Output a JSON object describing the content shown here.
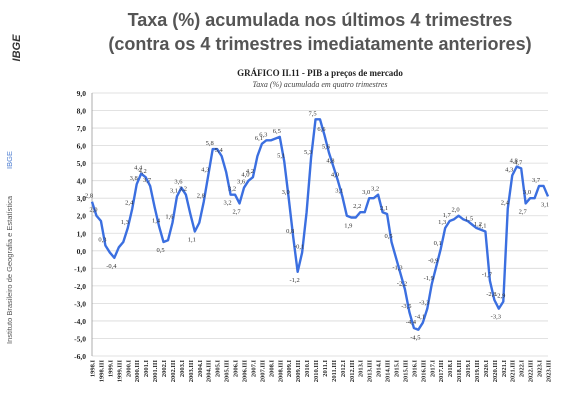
{
  "header": {
    "title": [
      "Taxa (%) acumulada nos últimos 4 trimestres",
      "(contra os 4 trimestres imediatamente anteriores)"
    ],
    "logo": "IBGE",
    "side_text": "Instituto Brasileiro de Geografia e Estatística",
    "side_brand": "IBGE"
  },
  "chart_data": {
    "type": "line",
    "title": "GRÁFICO II.11 - PIB a preços de mercado",
    "subtitle": "Taxa (%) acumulada em quatro trimestres",
    "categories": [
      "1998.I",
      null,
      "1998.III",
      null,
      "1999.I",
      null,
      "1999.III",
      null,
      "2000.I",
      null,
      "2000.III",
      null,
      "2001.I",
      null,
      "2001.III",
      null,
      "2002.I",
      null,
      "2002.III",
      null,
      "2003.I",
      null,
      "2003.III",
      null,
      "2004.I",
      null,
      "2004.III",
      null,
      "2005.I",
      null,
      "2005.III",
      null,
      "2006.I",
      null,
      "2006.III",
      null,
      "2007.I",
      null,
      "2007.III",
      null,
      "2008.I",
      null,
      "2008.III",
      null,
      "2009.I",
      null,
      "2009.III",
      null,
      "2010.I",
      null,
      "2010.III",
      null,
      "2011.I",
      null,
      "2011.III",
      null,
      "2012.I",
      null,
      "2012.III",
      null,
      "2013.I",
      null,
      "2013.III",
      null,
      "2014.I",
      null,
      "2014.III",
      null,
      "2015.I",
      null,
      "2015.III",
      null,
      "2016.I",
      null,
      "2016.III",
      null,
      "2017.I",
      null,
      "2017.III",
      null,
      "2018.I",
      null,
      "2018.III",
      null,
      "2019.I",
      null,
      "2019.III",
      null,
      "2020.I",
      null,
      "2020.III",
      null,
      "2021.I",
      null,
      "2021.III",
      null,
      "2022.I",
      null,
      "2022.III",
      null,
      "2023.I",
      null,
      "2023.III"
    ],
    "values": [
      2.8,
      2.0,
      1.7,
      0.3,
      -0.1,
      -0.4,
      0.2,
      0.5,
      1.3,
      2.4,
      3.8,
      4.4,
      4.2,
      3.7,
      2.5,
      1.4,
      0.5,
      0.6,
      1.6,
      3.1,
      3.6,
      3.2,
      2.1,
      1.1,
      1.6,
      2.8,
      4.3,
      5.8,
      5.8,
      5.4,
      4.5,
      3.2,
      3.2,
      2.7,
      3.6,
      4.0,
      4.2,
      5.4,
      6.1,
      6.3,
      6.3,
      6.4,
      6.5,
      5.1,
      3.0,
      0.8,
      -1.2,
      -0.1,
      2.2,
      5.3,
      7.5,
      7.5,
      6.6,
      5.6,
      4.8,
      4.0,
      3.1,
      2.0,
      1.9,
      1.9,
      2.2,
      2.2,
      3.0,
      3.0,
      3.2,
      2.2,
      2.1,
      0.5,
      -0.4,
      -1.3,
      -2.2,
      -3.5,
      -4.4,
      -4.5,
      -4.1,
      -3.3,
      -1.9,
      -0.9,
      0.1,
      1.3,
      1.7,
      1.8,
      2.0,
      1.8,
      1.7,
      1.5,
      1.3,
      1.2,
      1.1,
      -1.7,
      -2.8,
      -3.3,
      -2.9,
      2.4,
      4.3,
      4.8,
      4.7,
      2.7,
      3.0,
      3.0,
      3.7,
      3.7,
      3.1
    ],
    "value_labels": [
      "2,8",
      "2,0",
      null,
      "0,3",
      null,
      "-0,4",
      null,
      null,
      "1,3",
      "2,4",
      "3,8",
      "4,4",
      "4,2",
      "3,7",
      null,
      "1,4",
      "0,5",
      null,
      "1,6",
      "3,1",
      "3,6",
      "3,2",
      null,
      "1,1",
      null,
      "2,8",
      "4,3",
      "5,8",
      null,
      "5,4",
      null,
      "3,2",
      "3,2",
      "2,7",
      "3,6",
      "4,0",
      "4,2",
      null,
      "6,1",
      "6,3",
      null,
      null,
      "6,5",
      "5,1",
      "3,0",
      "0,8",
      "-1,2",
      "-0,1",
      null,
      "5,3",
      "7,5",
      null,
      "6,6",
      "5,6",
      "4,8",
      "4,0",
      "3,1",
      null,
      "1,9",
      null,
      "2,2",
      null,
      "3,0",
      null,
      "3,2",
      null,
      "2,1",
      "0,5",
      null,
      "-1,3",
      "-2,2",
      "-3,5",
      "-4,4",
      "-4,5",
      "-4,1",
      "-3,3",
      "-1,9",
      "-0,9",
      "0,1",
      "1,3",
      "1,7",
      null,
      "2,0",
      null,
      null,
      "1,5",
      null,
      "1,2",
      "1,1",
      "-1,7",
      "-2,8",
      "-3,3",
      "-2,9",
      "2,4",
      "4,3",
      "4,8",
      "4,7",
      "2,7",
      "3,0",
      null,
      "3,7",
      null,
      "3,1"
    ],
    "color": "#3b6fe0",
    "ylim": [
      -6,
      9
    ],
    "yticks": [
      {
        "value": -6,
        "label": "-6,0"
      },
      {
        "value": -5,
        "label": "-5,0"
      },
      {
        "value": -4,
        "label": "-4,0"
      },
      {
        "value": -3,
        "label": "-3,0"
      },
      {
        "value": -2,
        "label": "-2,0"
      },
      {
        "value": -1,
        "label": "-1,0"
      },
      {
        "value": 0,
        "label": "0,0"
      },
      {
        "value": 1,
        "label": "1,0"
      },
      {
        "value": 2,
        "label": "2,0"
      },
      {
        "value": 3,
        "label": "3,0"
      },
      {
        "value": 4,
        "label": "4,0"
      },
      {
        "value": 5,
        "label": "5,0"
      },
      {
        "value": 6,
        "label": "6,0"
      },
      {
        "value": 7,
        "label": "7,0"
      },
      {
        "value": 8,
        "label": "8,0"
      },
      {
        "value": 9,
        "label": "9,0"
      }
    ],
    "grid": true
  }
}
